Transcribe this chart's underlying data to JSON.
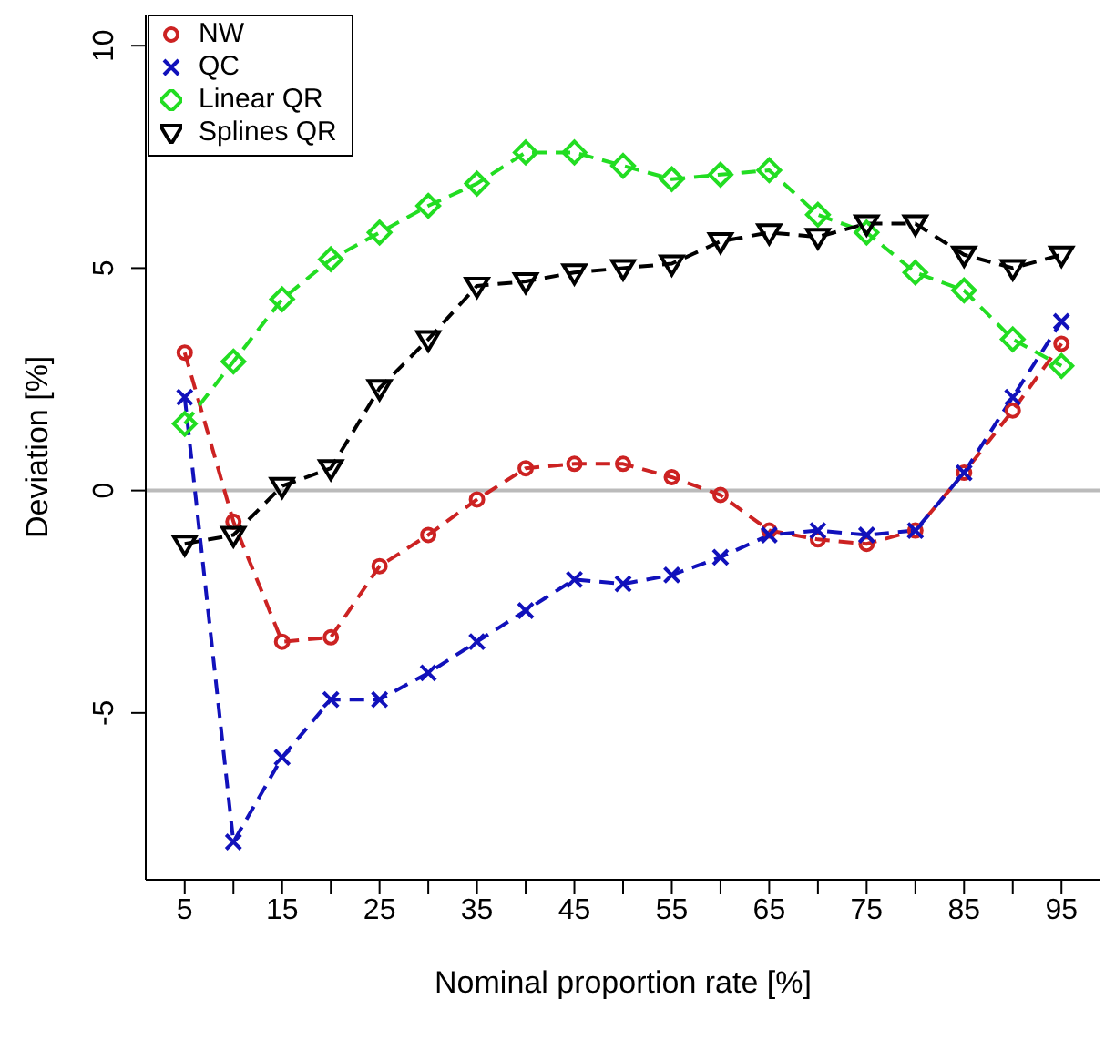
{
  "chart_data": {
    "type": "line",
    "xlabel": "Nominal proportion rate [%]",
    "ylabel": "Deviation [%]",
    "x": [
      5,
      10,
      15,
      20,
      25,
      30,
      35,
      40,
      45,
      50,
      55,
      60,
      65,
      70,
      75,
      80,
      85,
      90,
      95
    ],
    "series": [
      {
        "name": "NW",
        "color": "#cc2222",
        "marker": "circle",
        "values": [
          3.1,
          -0.7,
          -3.4,
          -3.3,
          -1.7,
          -1.0,
          -0.2,
          0.5,
          0.6,
          0.6,
          0.3,
          -0.1,
          -0.9,
          -1.1,
          -1.2,
          -0.9,
          0.4,
          1.8,
          3.3
        ]
      },
      {
        "name": "QC",
        "color": "#1111bb",
        "marker": "cross",
        "values": [
          2.1,
          -7.9,
          -6.0,
          -4.7,
          -4.7,
          -4.1,
          -3.4,
          -2.7,
          -2.0,
          -2.1,
          -1.9,
          -1.5,
          -1.0,
          -0.9,
          -1.0,
          -0.9,
          0.4,
          2.1,
          3.8
        ]
      },
      {
        "name": "Linear QR",
        "color": "#22dd22",
        "marker": "diamond",
        "values": [
          1.5,
          2.9,
          4.3,
          5.2,
          5.8,
          6.4,
          6.9,
          7.6,
          7.6,
          7.3,
          7.0,
          7.1,
          7.2,
          6.2,
          5.8,
          4.9,
          4.5,
          3.4,
          2.8
        ]
      },
      {
        "name": "Splines QR",
        "color": "#000000",
        "marker": "triangle",
        "values": [
          -1.2,
          -1.0,
          0.1,
          0.5,
          2.3,
          3.4,
          4.6,
          4.7,
          4.9,
          5.0,
          5.1,
          5.6,
          5.8,
          5.7,
          6.0,
          6.0,
          5.3,
          5.0,
          5.3
        ]
      }
    ],
    "xlim": [
      1,
      99
    ],
    "xticks": [
      5,
      {
        "value": 10,
        "label": null
      },
      15,
      {
        "value": 20,
        "label": null
      },
      25,
      {
        "value": 30,
        "label": null
      },
      35,
      {
        "value": 40,
        "label": null
      },
      45,
      {
        "value": 50,
        "label": null
      },
      55,
      {
        "value": 60,
        "label": null
      },
      65,
      {
        "value": 70,
        "label": null
      },
      75,
      {
        "value": 80,
        "label": null
      },
      85,
      {
        "value": 90,
        "label": null
      },
      95
    ],
    "ylim": [
      -8.75,
      10.7
    ],
    "yticks": [
      -5,
      0,
      5,
      10
    ],
    "ref_lines": [
      {
        "axis": "y",
        "value": 0,
        "color": "#bbbbbb"
      }
    ],
    "legend": "top left",
    "line_style": "dashed",
    "grid": false
  }
}
